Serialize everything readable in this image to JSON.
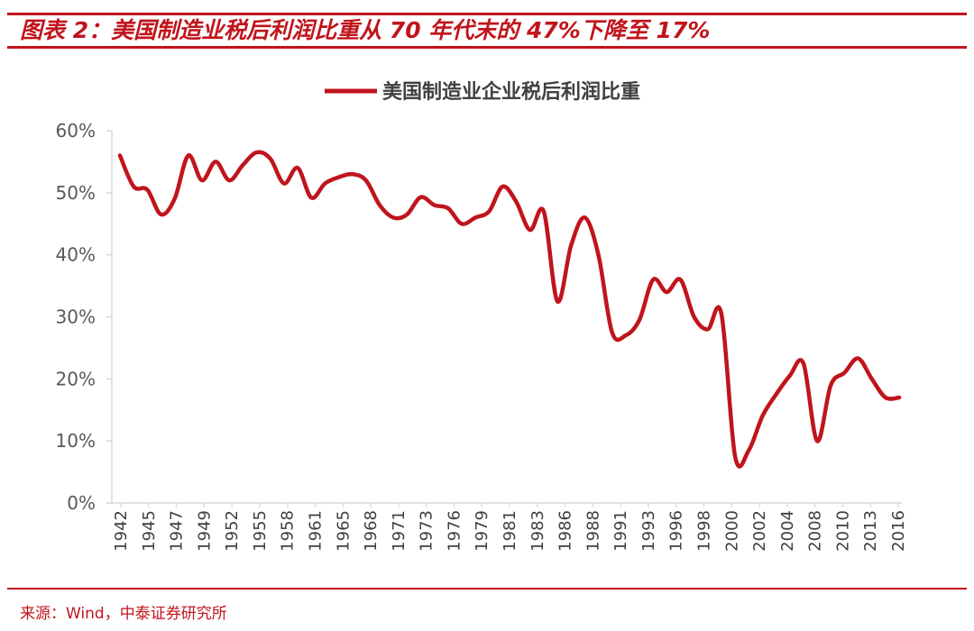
{
  "figure_title": "图表 2：美国制造业税后利润比重从 70 年代末的 47%下降至 17%",
  "source": "来源：Wind，中泰证券研究所",
  "colors": {
    "accent": "#c0141c",
    "line": "#c0141c",
    "axis": "#d9d9d9",
    "text": "#595959"
  },
  "chart_data": {
    "type": "line",
    "title": "",
    "xlabel": "",
    "ylabel": "",
    "ylim": [
      0,
      60
    ],
    "y_ticks": [
      "0%",
      "10%",
      "20%",
      "30%",
      "40%",
      "50%",
      "60%"
    ],
    "x_tick_labels": [
      "1942",
      "1945",
      "1947",
      "1949",
      "1952",
      "1955",
      "1958",
      "1961",
      "1965",
      "1968",
      "1971",
      "1973",
      "1976",
      "1979",
      "1981",
      "1983",
      "1986",
      "1988",
      "1991",
      "1993",
      "1996",
      "1998",
      "2000",
      "2002",
      "2004",
      "2008",
      "2010",
      "2013",
      "2016"
    ],
    "grid": false,
    "legend_position": "top-center",
    "series": [
      {
        "name": "美国制造业企业税后利润比重",
        "values": [
          56,
          51,
          50.5,
          46.5,
          49,
          56,
          52,
          55,
          52,
          54.5,
          56.5,
          55.5,
          51.5,
          54,
          49.2,
          51.5,
          52.5,
          53,
          52,
          48,
          46,
          46.5,
          49.3,
          48,
          47.5,
          45,
          46,
          47,
          51,
          48.5,
          44,
          47,
          32.5,
          41.5,
          46,
          40,
          27.5,
          27,
          29.5,
          36,
          34,
          36,
          30,
          28,
          30.5,
          7.5,
          8.5,
          14,
          17.5,
          20.5,
          22.5,
          10,
          19,
          21,
          23.3,
          20,
          17,
          17
        ]
      }
    ]
  }
}
